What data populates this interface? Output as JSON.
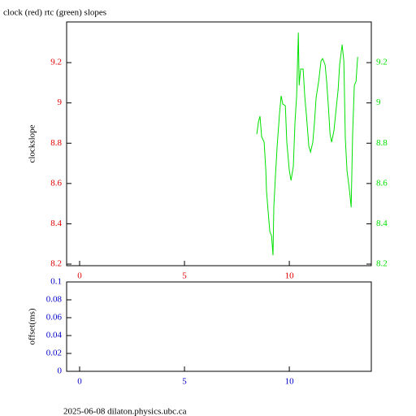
{
  "chart_data": [
    {
      "type": "line",
      "title": "clock (red) rtc (green) slopes",
      "ylabel": "clockslope",
      "xlim": [
        -0.62,
        13.91
      ],
      "xticks": [
        0,
        5,
        10
      ],
      "xtick_color": "#e00000",
      "ylim": [
        8.192,
        9.402
      ],
      "yticks": [
        8.2,
        8.4,
        8.6,
        8.8,
        9,
        9.2
      ],
      "ytick_color": "#e00000",
      "y2lim": [
        8.192,
        9.402
      ],
      "y2ticks": [
        8.2,
        8.4,
        8.6,
        8.8,
        9,
        9.2
      ],
      "y2tick_color": "#00e000",
      "series": [
        {
          "name": "rtc",
          "color": "#00e000",
          "axis": "y2",
          "x": [
            8.45,
            8.53,
            8.6,
            8.68,
            8.8,
            8.88,
            8.91,
            8.99,
            9.07,
            9.15,
            9.22,
            9.26,
            9.34,
            9.42,
            9.53,
            9.61,
            9.69,
            9.81,
            9.88,
            10.0,
            10.08,
            10.19,
            10.27,
            10.35,
            10.43,
            10.47,
            10.54,
            10.66,
            10.74,
            10.81,
            10.93,
            11.01,
            11.12,
            11.2,
            11.28,
            11.4,
            11.51,
            11.59,
            11.71,
            11.78,
            11.86,
            11.94,
            12.02,
            12.13,
            12.21,
            12.33,
            12.4,
            12.52,
            12.6,
            12.67,
            12.75,
            12.87,
            12.95,
            13.02,
            13.1,
            13.18,
            13.26
          ],
          "values": [
            8.845,
            8.906,
            8.934,
            8.833,
            8.805,
            8.664,
            8.563,
            8.462,
            8.361,
            8.341,
            8.244,
            8.482,
            8.644,
            8.785,
            8.946,
            9.035,
            8.994,
            8.986,
            8.805,
            8.664,
            8.615,
            8.684,
            8.906,
            9.035,
            9.349,
            9.087,
            9.168,
            9.168,
            9.027,
            8.946,
            8.785,
            8.756,
            8.805,
            8.906,
            9.027,
            9.107,
            9.208,
            9.22,
            9.188,
            9.107,
            8.986,
            8.845,
            8.805,
            8.865,
            8.946,
            9.067,
            9.188,
            9.289,
            9.208,
            8.825,
            8.664,
            8.563,
            8.482,
            8.845,
            9.087,
            9.107,
            9.228
          ]
        }
      ]
    },
    {
      "type": "line",
      "ylabel": "offset(ms)",
      "xlim": [
        -0.62,
        13.91
      ],
      "xticks": [
        0,
        5,
        10
      ],
      "xtick_color": "#0000cc",
      "ylim": [
        0,
        0.1
      ],
      "yticks": [
        0,
        0.02,
        0.04,
        0.06,
        0.08,
        0.1
      ],
      "ytick_color": "#0000cc",
      "series": []
    }
  ],
  "footer": "2025-06-08  dilaton.physics.ubc.ca"
}
